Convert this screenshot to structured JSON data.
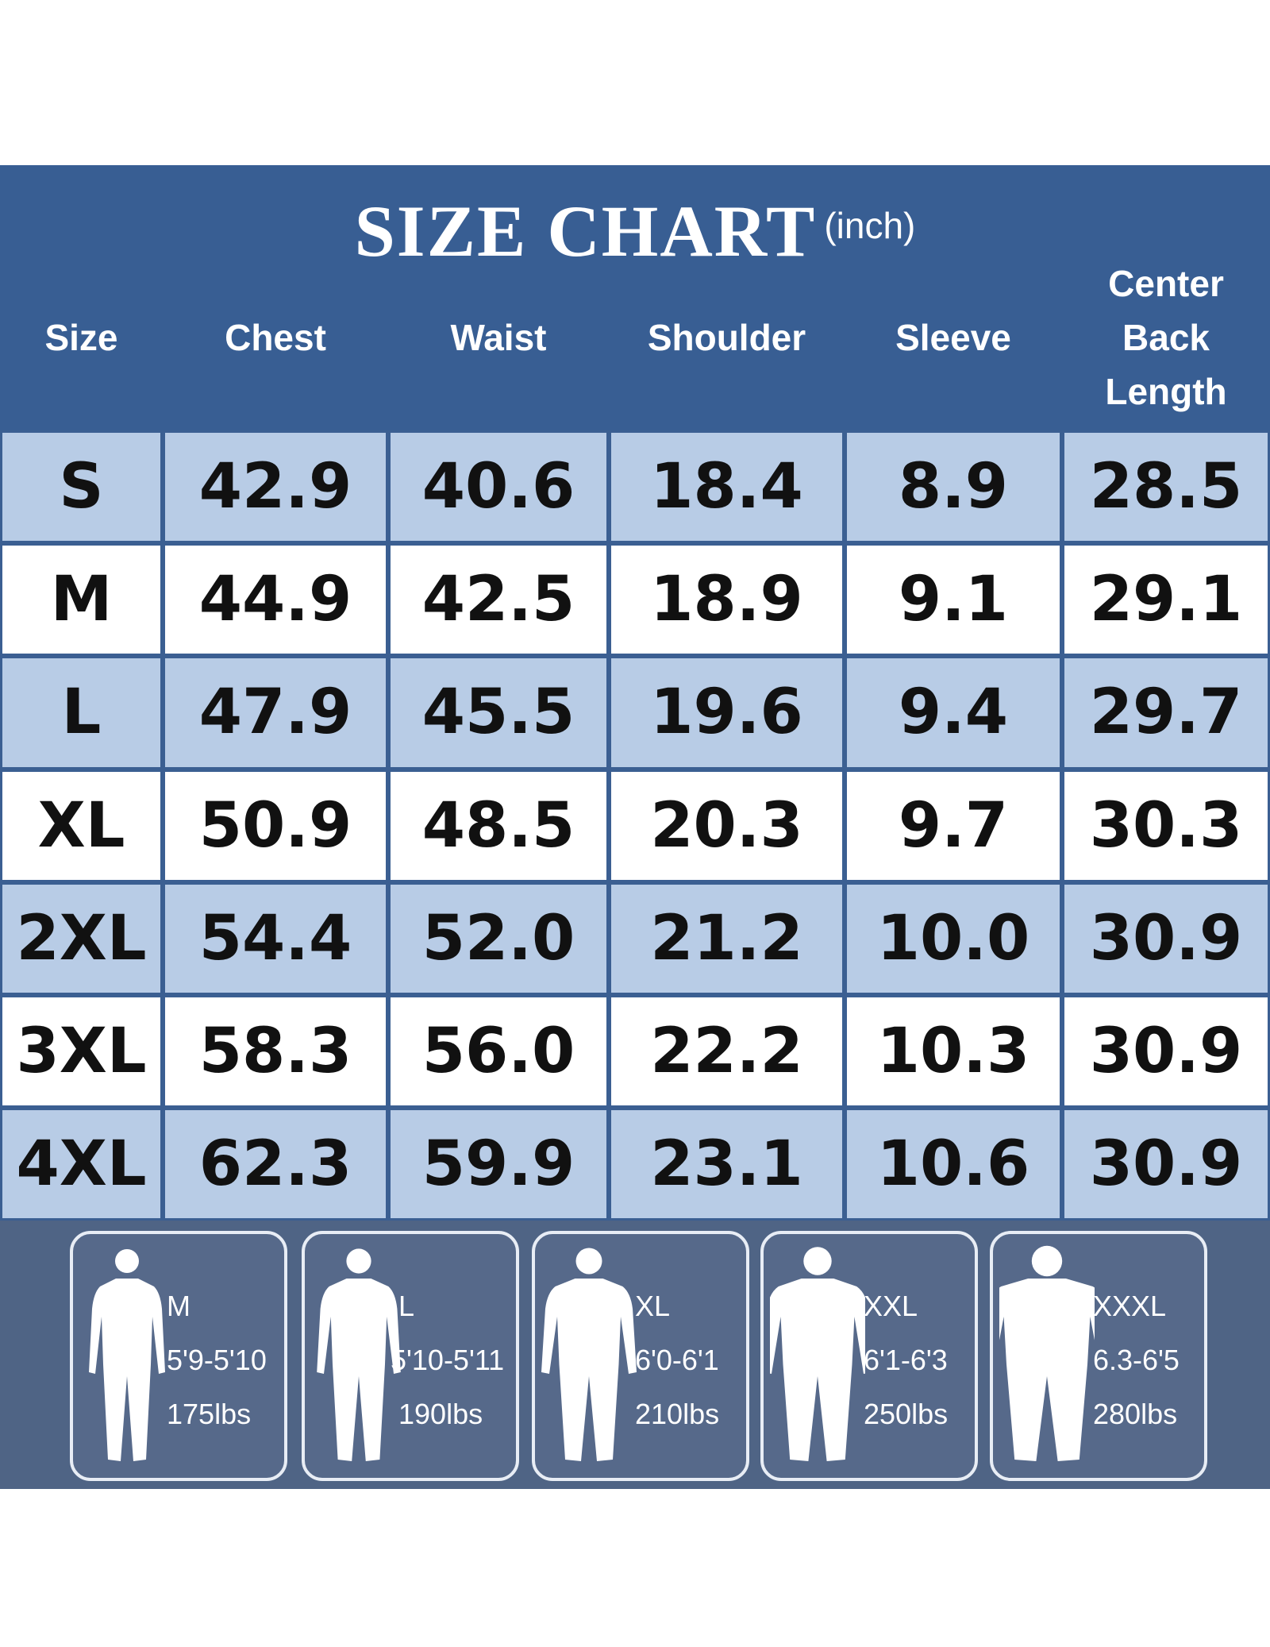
{
  "header": {
    "title": "SIZE CHART",
    "unit": "(inch)"
  },
  "table": {
    "columns": [
      "Size",
      "Chest",
      "Waist",
      "Shoulder",
      "Sleeve",
      "Center Back Length"
    ],
    "rows": [
      [
        "S",
        "42.9",
        "40.6",
        "18.4",
        "8.9",
        "28.5"
      ],
      [
        "M",
        "44.9",
        "42.5",
        "18.9",
        "9.1",
        "29.1"
      ],
      [
        "L",
        "47.9",
        "45.5",
        "19.6",
        "9.4",
        "29.7"
      ],
      [
        "XL",
        "50.9",
        "48.5",
        "20.3",
        "9.7",
        "30.3"
      ],
      [
        "2XL",
        "54.4",
        "52.0",
        "21.2",
        "10.0",
        "30.9"
      ],
      [
        "3XL",
        "58.3",
        "56.0",
        "22.2",
        "10.3",
        "30.9"
      ],
      [
        "4XL",
        "62.3",
        "59.9",
        "23.1",
        "10.6",
        "30.9"
      ]
    ]
  },
  "figures": [
    {
      "size": "M",
      "height": "5'9-5'10",
      "weight": "175lbs"
    },
    {
      "size": "L",
      "height": "5'10-5'11",
      "weight": "190lbs"
    },
    {
      "size": "XL",
      "height": "6'0-6'1",
      "weight": "210lbs"
    },
    {
      "size": "XXL",
      "height": "6'1-6'3",
      "weight": "250lbs"
    },
    {
      "size": "XXXL",
      "height": "6.3-6'5",
      "weight": "280lbs"
    }
  ]
}
